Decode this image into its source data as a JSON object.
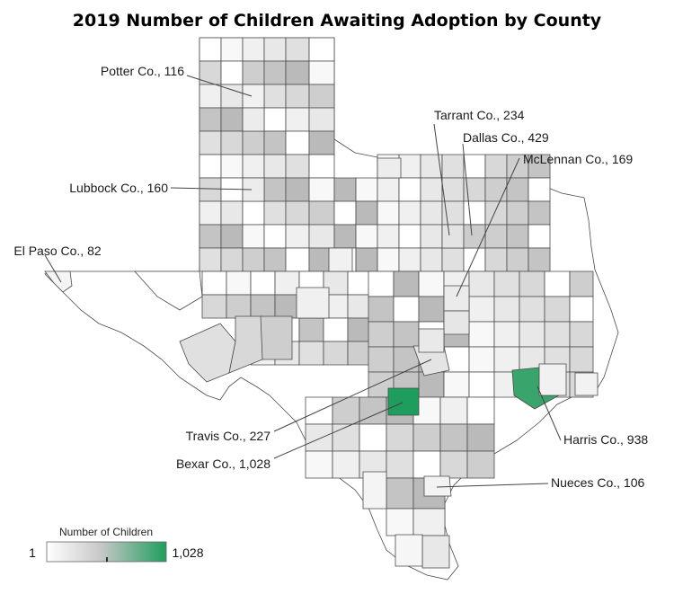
{
  "title": "2019 Number of Children Awaiting Adoption by County",
  "colors": {
    "low": "#ffffff",
    "mid": "#c8c8c8",
    "high": "#1e9e5c",
    "border": "#4a4a4a",
    "empty": "#ffffff"
  },
  "legend": {
    "title": "Number of Children",
    "min_label": "1",
    "max_label": "1,028",
    "min": 1,
    "max": 1028
  },
  "callouts": [
    {
      "id": "potter",
      "label": "Potter Co., 116",
      "value": 116
    },
    {
      "id": "lubbock",
      "label": "Lubbock Co., 160",
      "value": 160
    },
    {
      "id": "elpaso",
      "label": "El Paso Co., 82",
      "value": 82
    },
    {
      "id": "tarrant",
      "label": "Tarrant Co., 234",
      "value": 234
    },
    {
      "id": "dallas",
      "label": "Dallas Co., 429",
      "value": 429
    },
    {
      "id": "mclennan",
      "label": "McLennan Co., 169",
      "value": 169
    },
    {
      "id": "travis",
      "label": "Travis Co., 227",
      "value": 227
    },
    {
      "id": "bexar",
      "label": "Bexar Co., 1,028",
      "value": 1028
    },
    {
      "id": "harris",
      "label": "Harris Co., 938",
      "value": 938
    },
    {
      "id": "nueces",
      "label": "Nueces Co., 106",
      "value": 106
    }
  ]
}
